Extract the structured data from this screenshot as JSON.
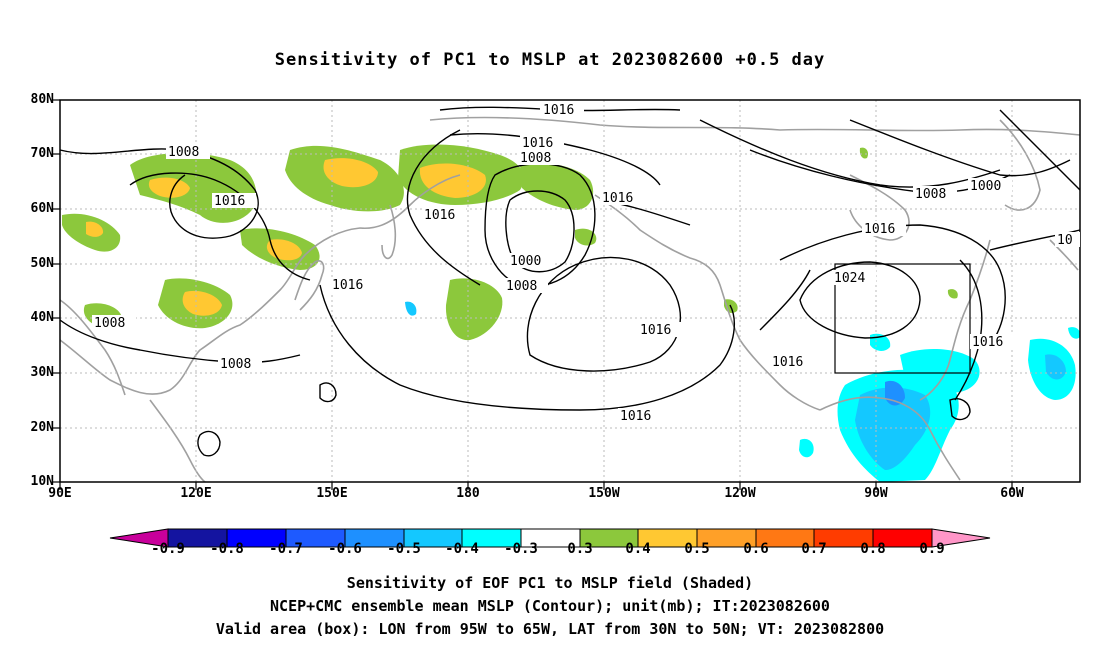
{
  "title": "Sensitivity of PC1 to MSLP at 2023082600 +0.5 day",
  "y_axis": {
    "labels": [
      "80N",
      "70N",
      "60N",
      "50N",
      "40N",
      "30N",
      "20N",
      "10N"
    ]
  },
  "x_axis": {
    "labels": [
      "90E",
      "120E",
      "150E",
      "180",
      "150W",
      "120W",
      "90W",
      "60W"
    ]
  },
  "contour_labels": [
    "1016",
    "1016",
    "1008",
    "1008",
    "1016",
    "1016",
    "1016",
    "1000",
    "1008",
    "1016",
    "1008",
    "1000",
    "1016",
    "1016",
    "1024",
    "1008",
    "1016",
    "1008",
    "1016",
    "1016",
    "10"
  ],
  "valid_box": {
    "lon_from": "95W",
    "lon_to": "65W",
    "lat_from": "30N",
    "lat_to": "50N"
  },
  "colorbar": {
    "labels": [
      "-0.9",
      "-0.8",
      "-0.7",
      "-0.6",
      "-0.5",
      "-0.4",
      "-0.3",
      "0.3",
      "0.4",
      "0.5",
      "0.6",
      "0.7",
      "0.8",
      "0.9"
    ],
    "colors": [
      "#c8009b",
      "#1414a0",
      "#0000ff",
      "#1e5aff",
      "#1e90ff",
      "#14c8ff",
      "#00ffff",
      "#ffffff",
      "#8cc83c",
      "#ffc832",
      "#ffa028",
      "#ff7814",
      "#ff3c00",
      "#ff0000",
      "#ff96c8"
    ]
  },
  "shading_colors": {
    "neg_light": "#00ffff",
    "neg_mid": "#14c8ff",
    "neg_strong": "#1e90ff",
    "pos_light": "#8cc83c",
    "pos_mid": "#ffc832",
    "pos_strong": "#ffa028"
  },
  "footer": {
    "line1": "Sensitivity of EOF PC1 to MSLP field (Shaded)",
    "line2": "NCEP+CMC ensemble mean MSLP (Contour); unit(mb); IT:2023082600",
    "line3": "Valid area (box): LON from 95W to 65W, LAT from 30N to 50N; VT: 2023082800"
  }
}
